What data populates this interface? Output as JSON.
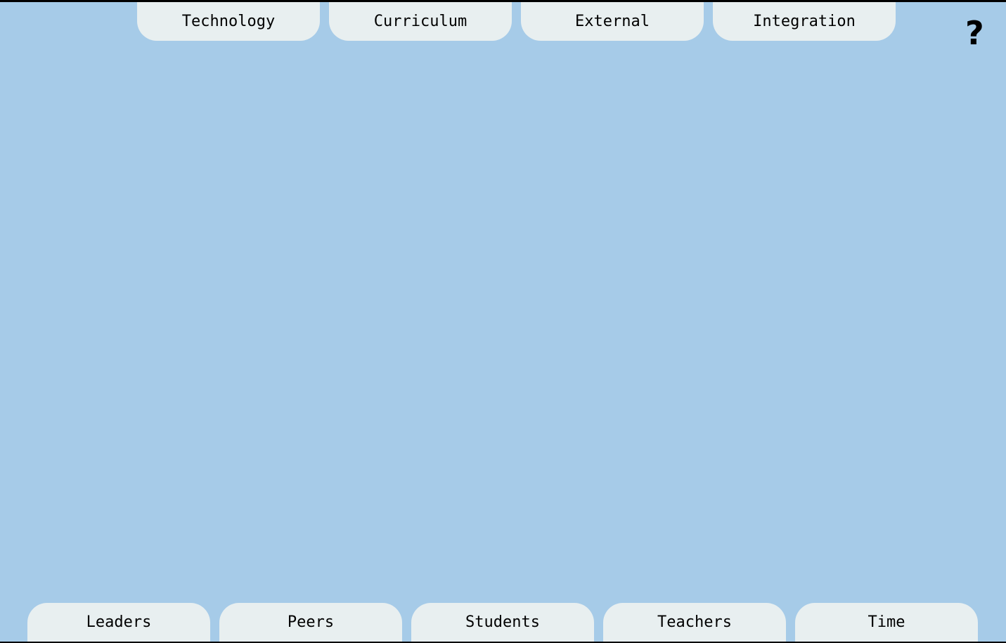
{
  "top_tabs": [
    "Technology",
    "Curriculum",
    "External",
    "Integration"
  ],
  "bottom_tabs": [
    "Leaders",
    "Peers",
    "Students",
    "Teachers",
    "Time"
  ],
  "help": {
    "label": "?",
    "icon": "help-icon"
  },
  "colors": {
    "background": "#a6cbe8",
    "tab": "#e8eff0"
  }
}
